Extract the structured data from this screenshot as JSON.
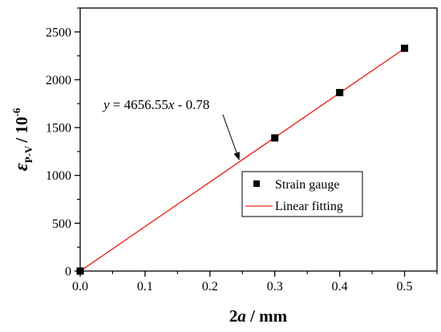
{
  "chart_data": {
    "type": "scatter",
    "xlabel": {
      "main": "2",
      "italic": "a",
      "rest": " / mm"
    },
    "ylabel": {
      "symbol": "ε",
      "subscript": "P-V",
      "unit": "/ 10",
      "exponent": "-6"
    },
    "xlim": [
      0,
      0.55
    ],
    "ylim": [
      0,
      2750
    ],
    "xticks": [
      0.0,
      0.1,
      0.2,
      0.3,
      0.4,
      0.5
    ],
    "xtick_labels": [
      "0.0",
      "0.1",
      "0.2",
      "0.3",
      "0.4",
      "0.5"
    ],
    "yticks": [
      0,
      500,
      1000,
      1500,
      2000,
      2500
    ],
    "ytick_labels": [
      "0",
      "500",
      "1000",
      "1500",
      "2000",
      "2500"
    ],
    "series": [
      {
        "name": "Strain gauge",
        "kind": "scatter",
        "marker": "square",
        "color": "#000000",
        "x": [
          0.0,
          0.3,
          0.4,
          0.5
        ],
        "y": [
          0,
          1392,
          1866,
          2329
        ]
      },
      {
        "name": "Linear fitting",
        "kind": "line",
        "color": "#e8281e",
        "slope": 4656.55,
        "intercept": -0.78,
        "x_range": [
          0.0,
          0.5
        ]
      }
    ],
    "annotation": {
      "parts": [
        "y",
        " = 4656.55",
        "x",
        " - 0.78"
      ],
      "arrow_to_x": 0.245
    },
    "legend": {
      "position": "center-right"
    },
    "grid": false
  }
}
